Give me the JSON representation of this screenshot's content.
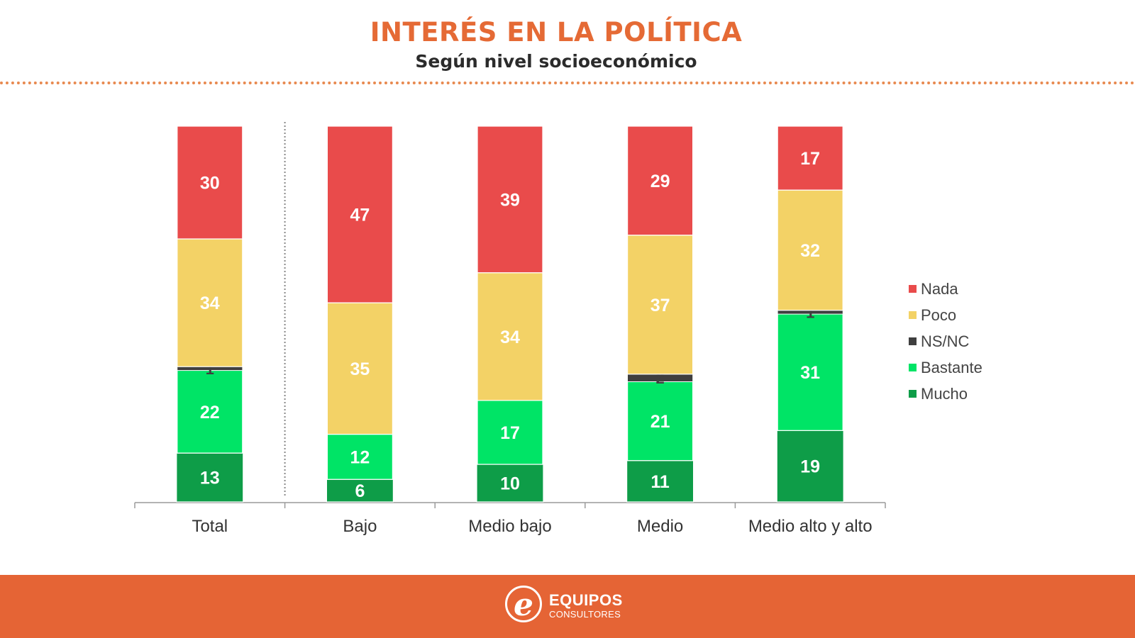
{
  "header": {
    "title": "INTERÉS EN LA POLÍTICA",
    "subtitle": "Según nivel socioeconómico"
  },
  "chart_data": {
    "type": "bar",
    "stacked": true,
    "title": "INTERÉS EN LA POLÍTICA",
    "subtitle": "Según nivel socioeconómico",
    "xlabel": "",
    "ylabel": "",
    "ylim": [
      0,
      100
    ],
    "grid": false,
    "legend_position": "right",
    "categories": [
      "Total",
      "Bajo",
      "Medio bajo",
      "Medio",
      "Medio alto y alto"
    ],
    "series": [
      {
        "name": "Mucho",
        "color": "#0E9D48",
        "label_color": "#ffffff",
        "values": [
          13,
          6,
          10,
          11,
          19
        ]
      },
      {
        "name": "Bastante",
        "color": "#00E466",
        "label_color": "#ffffff",
        "values": [
          22,
          12,
          17,
          21,
          31
        ]
      },
      {
        "name": "NS/NC",
        "color": "#3F3F3F",
        "label_color": "#3F3F3F",
        "values": [
          1,
          0,
          0,
          2,
          1
        ]
      },
      {
        "name": "Poco",
        "color": "#F3D266",
        "label_color": "#ffffff",
        "values": [
          34,
          35,
          34,
          37,
          32
        ]
      },
      {
        "name": "Nada",
        "color": "#E94B4B",
        "label_color": "#ffffff",
        "values": [
          30,
          47,
          39,
          29,
          17
        ]
      }
    ],
    "legend": [
      "Nada",
      "Poco",
      "NS/NC",
      "Bastante",
      "Mucho"
    ]
  },
  "footer": {
    "brand_initial": "e",
    "brand_name": "EQUIPOS",
    "brand_sub": "CONSULTORES",
    "color": "#E56435"
  }
}
